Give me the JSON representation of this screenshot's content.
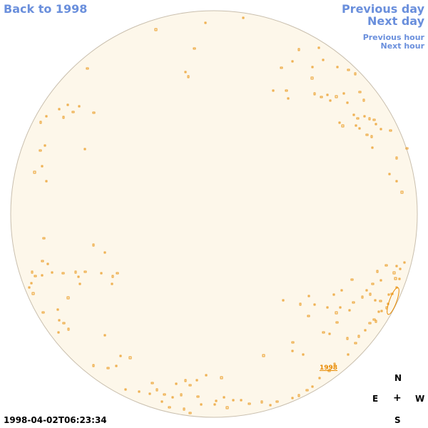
{
  "nav": {
    "back_label": "Back to 1998",
    "prev_day_label": "Previous day",
    "next_day_label": "Next day",
    "prev_hour_label": "Previous hour",
    "next_hour_label": "Next hour"
  },
  "compass": {
    "north": "N",
    "south": "S",
    "east": "E",
    "west": "W",
    "center": "+"
  },
  "timestamp": "1998-04-02T06:23:34",
  "marker_label": "1998",
  "colors": {
    "disk_fill": "#fdf7ea",
    "disk_stroke": "#c9bfae",
    "feature": "#e88a00",
    "link": "#6a8fdc"
  }
}
